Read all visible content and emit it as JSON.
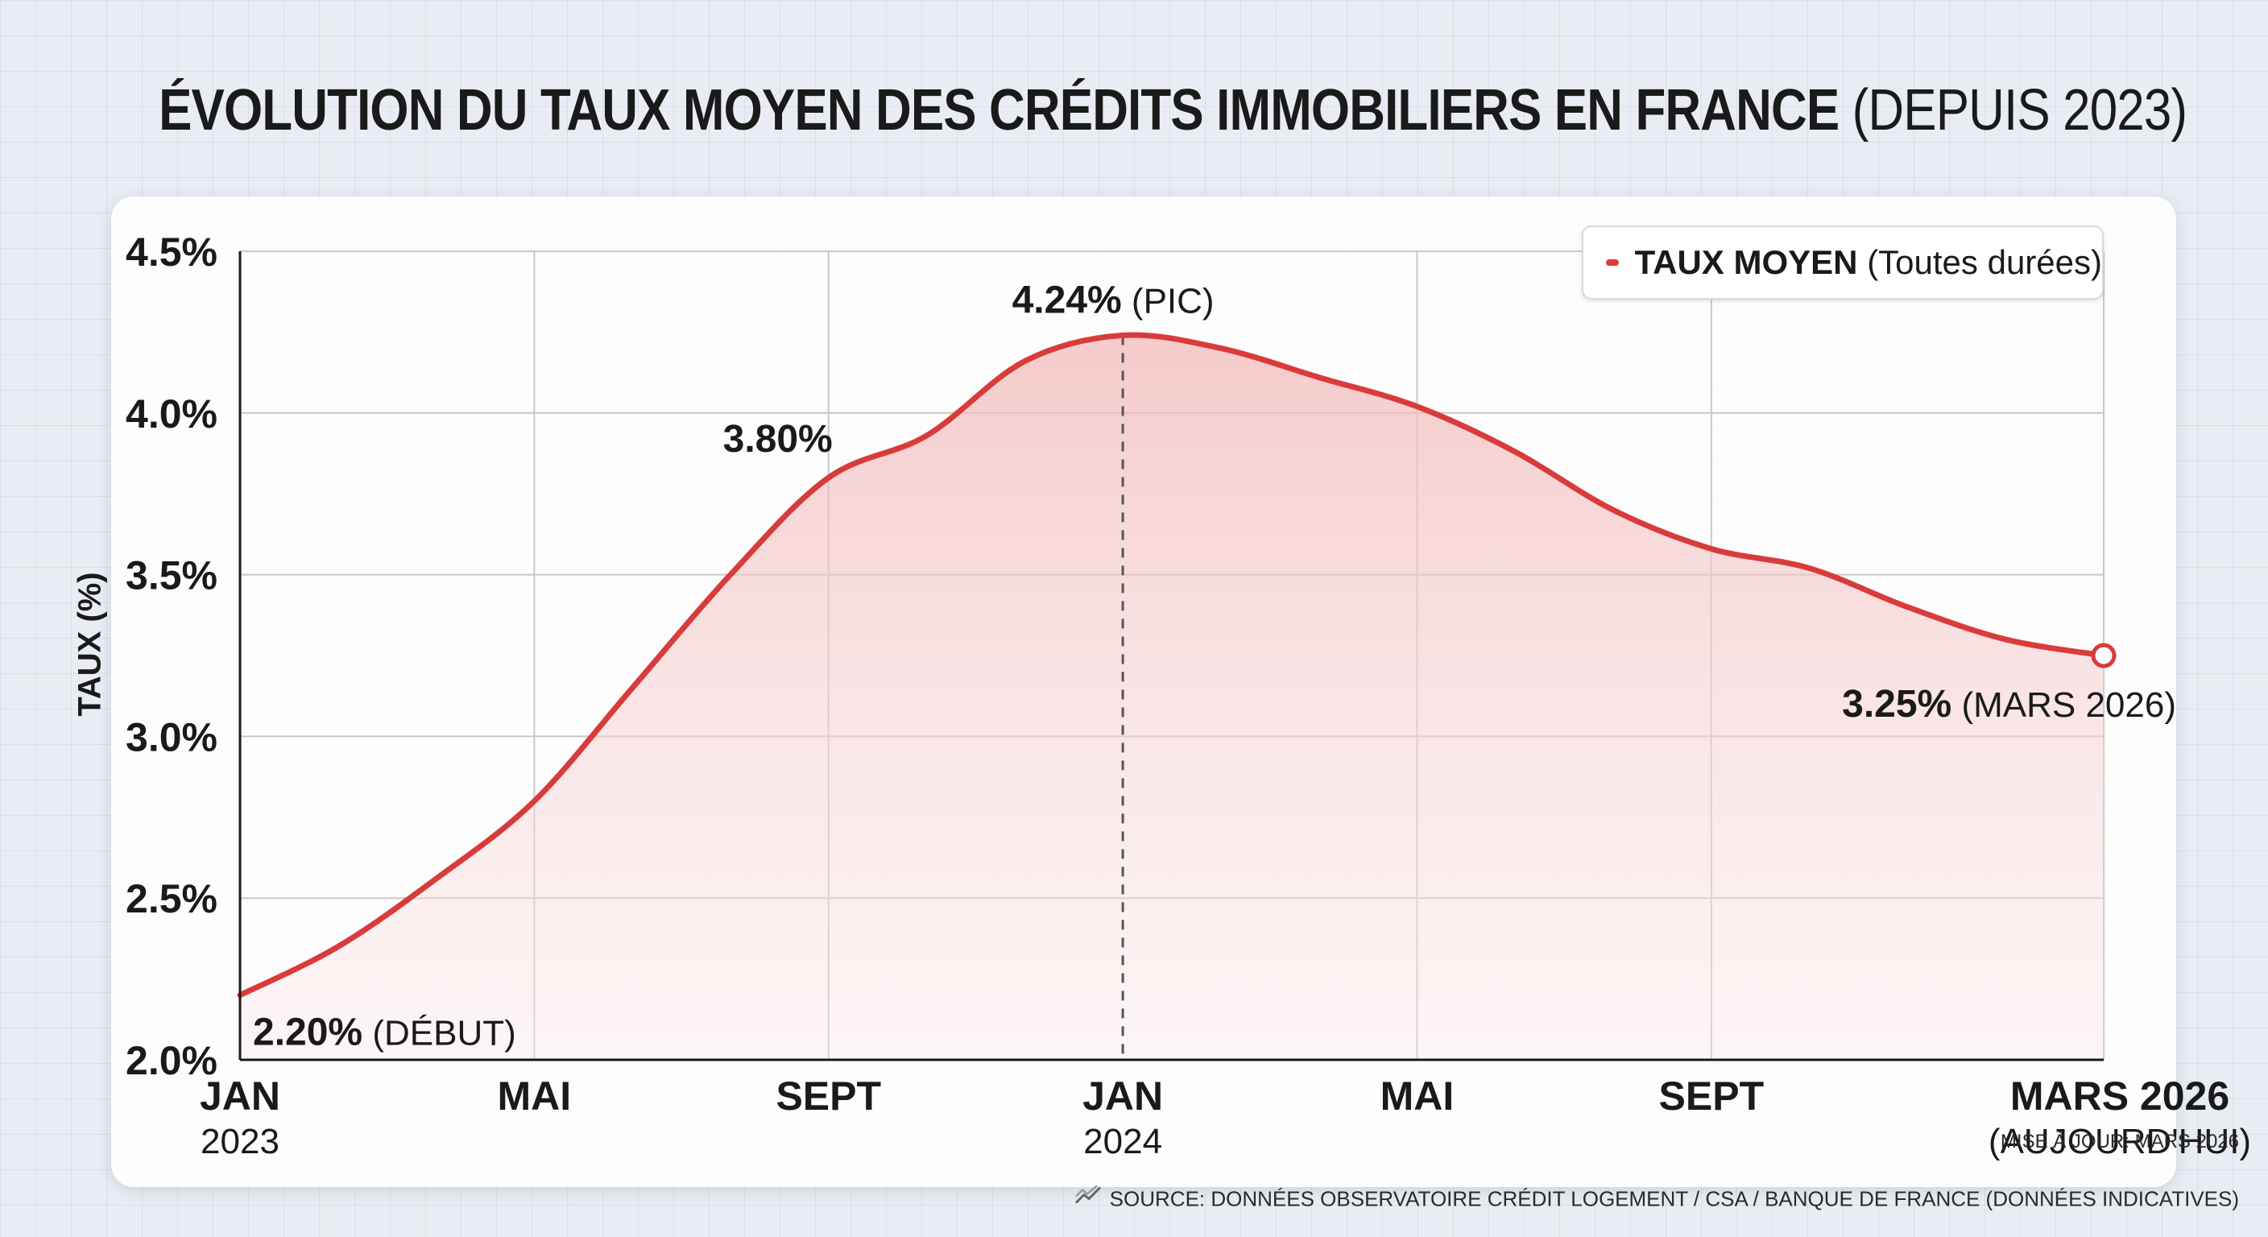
{
  "title": {
    "main": "ÉVOLUTION DU TAUX MOYEN DES CRÉDITS IMMOBILIERS EN FRANCE",
    "sub": "(DEPUIS 2023)"
  },
  "legend": {
    "label_bold": "TAUX MOYEN",
    "label_light": "(Toutes durées)"
  },
  "footer": {
    "update": "MISE À JOUR: MARS 2026",
    "source": "SOURCE: DONNÉES OBSERVATOIRE CRÉDIT LOGEMENT / CSA / BANQUE DE FRANCE (DONNÉES INDICATIVES)",
    "source_icon": "trend-lines-icon"
  },
  "chart_data": {
    "type": "area",
    "title": "ÉVOLUTION DU TAUX MOYEN DES CRÉDITS IMMOBILIERS EN FRANCE (DEPUIS 2023)",
    "ylabel": "TAUX (%)",
    "xlabel": "",
    "ylim": [
      2.0,
      4.5
    ],
    "xlim": [
      0,
      38
    ],
    "grid": true,
    "legend_position": "top-right",
    "colors": {
      "line": "#d93b3b",
      "fill": "#f7d6d6",
      "grid": "#c8c8c8",
      "axis": "#1a1a1a"
    },
    "y_ticks": [
      {
        "value": 2.0,
        "label": "2.0%"
      },
      {
        "value": 2.5,
        "label": "2.5%"
      },
      {
        "value": 3.0,
        "label": "3.0%"
      },
      {
        "value": 3.5,
        "label": "3.5%"
      },
      {
        "value": 4.0,
        "label": "4.0%"
      },
      {
        "value": 4.5,
        "label": "4.5%"
      }
    ],
    "x_ticks": [
      {
        "value": 0,
        "label": "JAN",
        "sublabel": "2023"
      },
      {
        "value": 6,
        "label": "MAI",
        "sublabel": ""
      },
      {
        "value": 12,
        "label": "SEPT",
        "sublabel": ""
      },
      {
        "value": 18,
        "label": "JAN",
        "sublabel": "2024"
      },
      {
        "value": 24,
        "label": "MAI",
        "sublabel": ""
      },
      {
        "value": 30,
        "label": "SEPT",
        "sublabel": ""
      },
      {
        "value": 38,
        "label": "MARS 2026",
        "sublabel": "(AUJOURD'HUI)"
      }
    ],
    "series": [
      {
        "name": "TAUX MOYEN (Toutes durées)",
        "x": [
          0,
          2,
          4,
          6,
          8,
          10,
          12,
          14,
          16,
          18,
          20,
          22,
          24,
          26,
          28,
          30,
          32,
          34,
          36,
          38
        ],
        "y": [
          2.2,
          2.35,
          2.56,
          2.8,
          3.15,
          3.5,
          3.8,
          3.93,
          4.16,
          4.24,
          4.2,
          4.11,
          4.02,
          3.88,
          3.7,
          3.58,
          3.52,
          3.4,
          3.3,
          3.25
        ]
      }
    ],
    "peak_x": 18,
    "annotations": [
      {
        "x": 0,
        "y": 2.2,
        "bold": "2.20%",
        "light": "(DÉBUT)",
        "pos": "below-right"
      },
      {
        "x": 12,
        "y": 3.8,
        "bold": "3.80%",
        "light": "",
        "pos": "above-left"
      },
      {
        "x": 18,
        "y": 4.24,
        "bold": "4.24%",
        "light": "(PIC)",
        "pos": "above"
      },
      {
        "x": 38,
        "y": 3.25,
        "bold": "3.25%",
        "light": "(MARS 2026)",
        "pos": "below-left"
      }
    ]
  }
}
